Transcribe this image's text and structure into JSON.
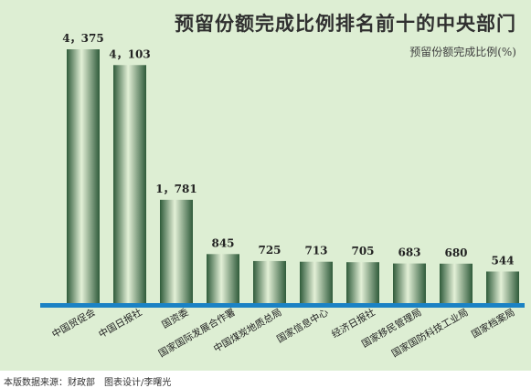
{
  "header": {
    "title": "预留份额完成比例排名前十的中央部门",
    "subtitle": "预留份额完成比例(%)"
  },
  "footer": {
    "source": "本版数据来源：财政部　图表设计/李曙光"
  },
  "colors": {
    "panel": "#ddeed3",
    "axis": "#1b82c4",
    "bar_dark": "#2f5b3a",
    "bar_light": "#e3f0d7"
  },
  "chart_data": {
    "type": "bar",
    "title": "预留份额完成比例排名前十的中央部门",
    "ylabel": "预留份额完成比例(%)",
    "xlabel": "",
    "ylim": [
      0,
      4375
    ],
    "grid": false,
    "categories": [
      "中国贸促会",
      "中国日报社",
      "国资委",
      "国家国际发展合作署",
      "中国煤炭地质总局",
      "国家信息中心",
      "经济日报社",
      "国家移民管理局",
      "国家国防科技工业局",
      "国家档案局"
    ],
    "values": [
      4375,
      4103,
      1781,
      845,
      725,
      713,
      705,
      683,
      680,
      544
    ],
    "value_labels": [
      "4，375",
      "4，103",
      "1，781",
      "845",
      "725",
      "713",
      "705",
      "683",
      "680",
      "544"
    ]
  }
}
